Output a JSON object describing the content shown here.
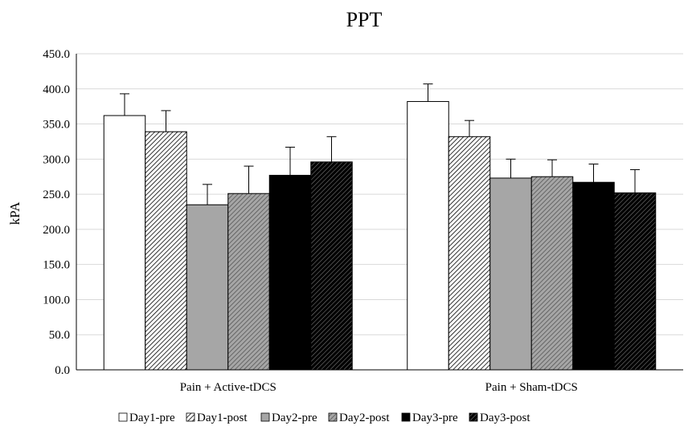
{
  "chart_data": {
    "type": "bar",
    "title": "PPT",
    "xlabel": "",
    "ylabel": "kPA",
    "ylim": [
      0,
      450
    ],
    "yticks": [
      "0.0",
      "50.0",
      "100.0",
      "150.0",
      "200.0",
      "250.0",
      "300.0",
      "350.0",
      "400.0",
      "450.0"
    ],
    "categories": [
      "Pain + Active-tDCS",
      "Pain + Sham-tDCS"
    ],
    "grid": true,
    "legend_position": "bottom",
    "series": [
      {
        "name": "Day1-pre",
        "values": [
          362,
          382
        ],
        "errors": [
          31,
          25
        ],
        "color": "#ffffff",
        "pattern": "none"
      },
      {
        "name": "Day1-post",
        "values": [
          339,
          332
        ],
        "errors": [
          30,
          23
        ],
        "color": "#ffffff",
        "pattern": "fine-diagonal"
      },
      {
        "name": "Day2-pre",
        "values": [
          235,
          273
        ],
        "errors": [
          29,
          27
        ],
        "color": "#a6a6a6",
        "pattern": "none"
      },
      {
        "name": "Day2-post",
        "values": [
          251,
          275
        ],
        "errors": [
          39,
          24
        ],
        "color": "#a6a6a6",
        "pattern": "diagonal"
      },
      {
        "name": "Day3-pre",
        "values": [
          277,
          267
        ],
        "errors": [
          40,
          26
        ],
        "color": "#000000",
        "pattern": "none"
      },
      {
        "name": "Day3-post",
        "values": [
          296,
          252
        ],
        "errors": [
          36,
          33
        ],
        "color": "#000000",
        "pattern": "dark-diagonal"
      }
    ]
  }
}
